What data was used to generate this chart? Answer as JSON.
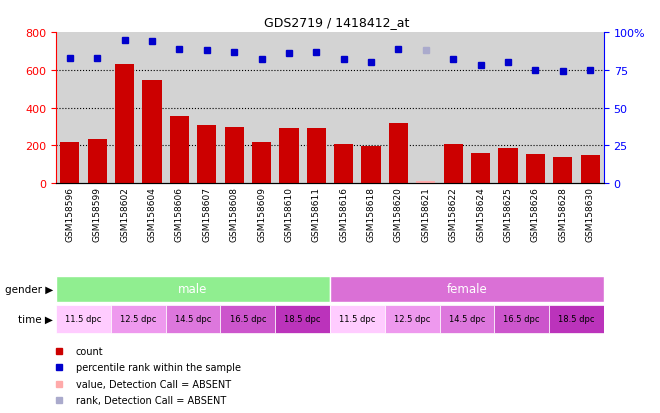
{
  "title": "GDS2719 / 1418412_at",
  "samples": [
    "GSM158596",
    "GSM158599",
    "GSM158602",
    "GSM158604",
    "GSM158606",
    "GSM158607",
    "GSM158608",
    "GSM158609",
    "GSM158610",
    "GSM158611",
    "GSM158616",
    "GSM158618",
    "GSM158620",
    "GSM158621",
    "GSM158622",
    "GSM158624",
    "GSM158625",
    "GSM158626",
    "GSM158628",
    "GSM158630"
  ],
  "bar_values": [
    220,
    235,
    630,
    545,
    355,
    310,
    300,
    220,
    295,
    295,
    210,
    195,
    320,
    10,
    210,
    160,
    185,
    155,
    140,
    148
  ],
  "bar_absent": [
    false,
    false,
    false,
    false,
    false,
    false,
    false,
    false,
    false,
    false,
    false,
    false,
    false,
    true,
    false,
    false,
    false,
    false,
    false,
    false
  ],
  "rank_values": [
    83,
    83,
    95,
    94,
    89,
    88,
    87,
    82,
    86,
    87,
    82,
    80,
    89,
    88,
    82,
    78,
    80,
    75,
    74,
    75
  ],
  "rank_absent": [
    false,
    false,
    false,
    false,
    false,
    false,
    false,
    false,
    false,
    false,
    false,
    false,
    false,
    true,
    false,
    false,
    false,
    false,
    false,
    false
  ],
  "ylim_left": [
    0,
    800
  ],
  "ylim_right": [
    0,
    100
  ],
  "yticks_left": [
    0,
    200,
    400,
    600,
    800
  ],
  "yticks_right": [
    0,
    25,
    50,
    75,
    100
  ],
  "bar_color": "#cc0000",
  "bar_absent_color": "#ffaaaa",
  "rank_color": "#0000cc",
  "rank_absent_color": "#aaaacc",
  "gender_colors": {
    "male": "#90ee90",
    "female": "#da70d6"
  },
  "bg_color": "#d3d3d3",
  "legend_items": [
    {
      "label": "count",
      "color": "#cc0000"
    },
    {
      "label": "percentile rank within the sample",
      "color": "#0000cc"
    },
    {
      "label": "value, Detection Call = ABSENT",
      "color": "#ffaaaa"
    },
    {
      "label": "rank, Detection Call = ABSENT",
      "color": "#aaaacc"
    }
  ],
  "time_colors_5": [
    "#ffccff",
    "#ee99ee",
    "#dd77dd",
    "#cc55cc",
    "#bb33bb"
  ]
}
